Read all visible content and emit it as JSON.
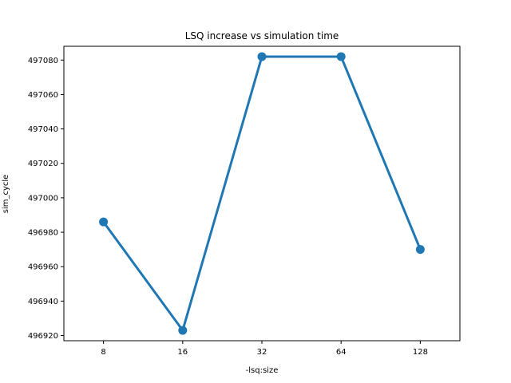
{
  "chart_data": {
    "type": "line",
    "title": "LSQ increase vs simulation time",
    "xlabel": "-lsq:size",
    "ylabel": "sim_cycle",
    "categories": [
      "8",
      "16",
      "32",
      "64",
      "128"
    ],
    "series": [
      {
        "values": [
          496986,
          496923,
          497082,
          497082,
          496970
        ]
      }
    ],
    "ylim": [
      496917,
      497088
    ],
    "yticks": [
      496920,
      496940,
      496960,
      496980,
      497000,
      497020,
      497040,
      497060,
      497080
    ],
    "grid": false,
    "legend": "none",
    "color": "#1f77b4"
  }
}
